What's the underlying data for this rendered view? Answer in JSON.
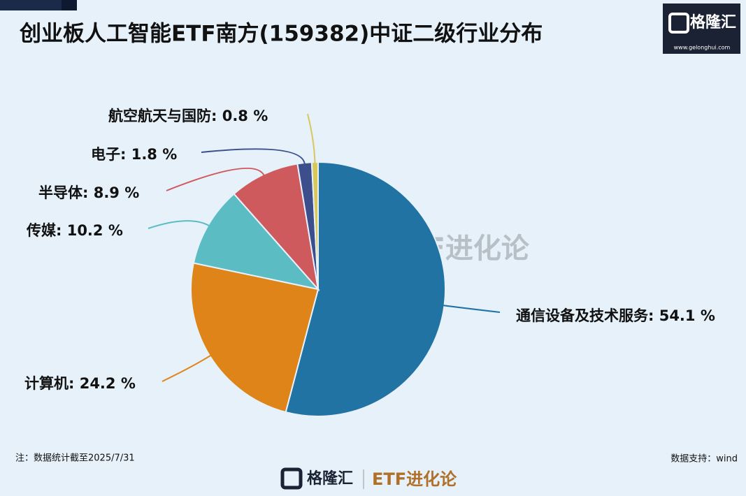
{
  "chart_data": {
    "type": "pie",
    "title": "创业板人工智能ETF南方(159382)中证二级行业分布",
    "values": [
      54.1,
      24.2,
      10.2,
      8.9,
      1.8,
      0.8
    ],
    "value_labels": [
      "通信设备及技术服务: 54.1 %",
      "计算机: 24.2 %",
      "传媒: 10.2 %",
      "半导体: 8.9 %",
      "电子: 1.8 %",
      "航空航天与国防: 0.8 %"
    ],
    "colors": [
      "#2173a3",
      "#de8419",
      "#5bbcc3",
      "#cf5a5e",
      "#3d4e8c",
      "#d8c85c"
    ],
    "note": "注：数据统计截至2025/7/31",
    "source": "数据支持：wind"
  },
  "branding": {
    "logo": "格隆汇",
    "url": "www.gelonghui.com",
    "column": "ETF进化论"
  }
}
